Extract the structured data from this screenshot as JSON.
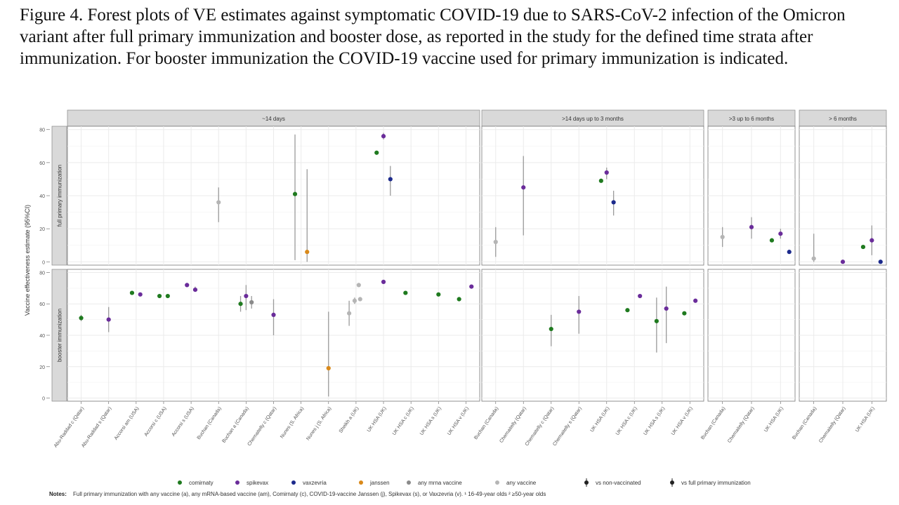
{
  "caption": "Figure 4. Forest plots of VE estimates against symptomatic COVID-19 due to SARS-CoV-2 infection of the Omicron variant after full primary immunization and booster dose, as reported in the study for the defined time strata after immunization. For booster immunization the COVID-19 vaccine used for primary immunization is indicated.",
  "colors": {
    "comirnaty": "#1f7a1f",
    "spikevax": "#6a2c9a",
    "vaxzevria": "#1c2a8c",
    "janssen": "#d9891a",
    "any_mrna": "#8a8a8a",
    "any_vaccine": "#b5b5b5",
    "error_bar": "#9a9a9a",
    "strip_bg": "#d9d9d9",
    "grid": "#ebebeb"
  },
  "notes": {
    "label": "Notes:",
    "text": "Full primary immunization with any vaccine (a), any mRNA-based vaccine (am), Comirnaty (c), COVID-19-vaccine Janssen (j), Spikevax (s), or Vaxzevria (v). ¹ 16-49-year olds ² ≥50-year olds"
  },
  "chart_data": {
    "type": "scatter",
    "subtype": "forest plot with error bars (faceted)",
    "ylabel": "Vaccine effectiveness estimate (95%CI)",
    "ylim": [
      -2,
      82
    ],
    "yticks": [
      0,
      20,
      40,
      60,
      80
    ],
    "grid": true,
    "legend_position": "bottom",
    "legend": [
      {
        "label": "comirnaty",
        "color_key": "comirnaty",
        "marker": "dot"
      },
      {
        "label": "spikevax",
        "color_key": "spikevax",
        "marker": "dot"
      },
      {
        "label": "vaxzevria",
        "color_key": "vaxzevria",
        "marker": "dot"
      },
      {
        "label": "janssen",
        "color_key": "janssen",
        "marker": "dot"
      },
      {
        "label": "any mrna vaccine",
        "color_key": "any_mrna",
        "marker": "dot"
      },
      {
        "label": "any vaccine",
        "color_key": "any_vaccine",
        "marker": "dot"
      },
      {
        "label": "vs non-vaccinated",
        "color_key": "none",
        "marker": "dot-bar"
      },
      {
        "label": "vs full primary immunization",
        "color_key": "none",
        "marker": "dot-bar"
      }
    ],
    "rows": [
      "full primary immunization",
      "booster immunization"
    ],
    "columns": [
      {
        "strip": "~14 days",
        "categories": [
          "Abu-Raddad c (Qatar)",
          "Abu-Raddad s (Qatar)",
          "Accorsi am (USA)",
          "Accorsi c (USA)",
          "Accorsi s (USA)",
          "Buchan (Canada)",
          "Buchan a (Canada)",
          "Chemaitelly c (Qatar)",
          "Nunes (S. Africa)",
          "Nunes j (S. Africa)",
          "Sheikh a (UK)",
          "UK HSA (UK)",
          "UK HSA c (UK)",
          "UK HSA s (UK)",
          "UK HSA v (UK)"
        ],
        "points": [
          {
            "row": 0,
            "x": "Buchan (Canada)",
            "offset": 0,
            "y": 36,
            "lo": 24,
            "hi": 45,
            "color_key": "any_vaccine"
          },
          {
            "row": 0,
            "x": "Nunes (S. Africa)",
            "offset": -0.22,
            "y": 41,
            "lo": 1,
            "hi": 77,
            "color_key": "comirnaty"
          },
          {
            "row": 0,
            "x": "Nunes (S. Africa)",
            "offset": 0.22,
            "y": 6,
            "lo": 0,
            "hi": 56,
            "color_key": "janssen"
          },
          {
            "row": 0,
            "x": "UK HSA (UK)",
            "offset": -0.25,
            "y": 66,
            "lo": 66,
            "hi": 66,
            "color_key": "comirnaty"
          },
          {
            "row": 0,
            "x": "UK HSA (UK)",
            "offset": 0,
            "y": 76,
            "lo": 74,
            "hi": 78,
            "color_key": "spikevax"
          },
          {
            "row": 0,
            "x": "UK HSA (UK)",
            "offset": 0.25,
            "y": 50,
            "lo": 40,
            "hi": 58,
            "color_key": "vaxzevria"
          },
          {
            "row": 1,
            "x": "Abu-Raddad c (Qatar)",
            "offset": 0,
            "y": 51,
            "lo": 49,
            "hi": 53,
            "color_key": "comirnaty"
          },
          {
            "row": 1,
            "x": "Abu-Raddad s (Qatar)",
            "offset": 0,
            "y": 50,
            "lo": 42,
            "hi": 58,
            "color_key": "spikevax"
          },
          {
            "row": 1,
            "x": "Accorsi am (USA)",
            "offset": -0.15,
            "y": 67,
            "lo": 66,
            "hi": 68,
            "color_key": "comirnaty"
          },
          {
            "row": 1,
            "x": "Accorsi am (USA)",
            "offset": 0.15,
            "y": 66,
            "lo": 65,
            "hi": 67,
            "color_key": "spikevax"
          },
          {
            "row": 1,
            "x": "Accorsi c (USA)",
            "offset": -0.15,
            "y": 65,
            "lo": 64,
            "hi": 66,
            "color_key": "comirnaty"
          },
          {
            "row": 1,
            "x": "Accorsi c (USA)",
            "offset": 0.15,
            "y": 65,
            "lo": 64,
            "hi": 66,
            "color_key": "comirnaty"
          },
          {
            "row": 1,
            "x": "Accorsi s (USA)",
            "offset": -0.15,
            "y": 72,
            "lo": 71,
            "hi": 73,
            "color_key": "spikevax"
          },
          {
            "row": 1,
            "x": "Accorsi s (USA)",
            "offset": 0.15,
            "y": 69,
            "lo": 68,
            "hi": 71,
            "color_key": "spikevax"
          },
          {
            "row": 1,
            "x": "Buchan a (Canada)",
            "offset": -0.2,
            "y": 60,
            "lo": 55,
            "hi": 65,
            "color_key": "comirnaty"
          },
          {
            "row": 1,
            "x": "Buchan a (Canada)",
            "offset": 0,
            "y": 65,
            "lo": 56,
            "hi": 72,
            "color_key": "spikevax"
          },
          {
            "row": 1,
            "x": "Buchan a (Canada)",
            "offset": 0.2,
            "y": 61,
            "lo": 57,
            "hi": 65,
            "color_key": "any_mrna"
          },
          {
            "row": 1,
            "x": "Chemaitelly c (Qatar)",
            "offset": 0,
            "y": 53,
            "lo": 40,
            "hi": 63,
            "color_key": "spikevax"
          },
          {
            "row": 1,
            "x": "Nunes j (S. Africa)",
            "offset": 0,
            "y": 19,
            "lo": 1,
            "hi": 55,
            "color_key": "janssen"
          },
          {
            "row": 1,
            "x": "Sheikh a (UK)",
            "offset": -0.25,
            "y": 54,
            "lo": 46,
            "hi": 62,
            "color_key": "any_vaccine"
          },
          {
            "row": 1,
            "x": "Sheikh a (UK)",
            "offset": -0.05,
            "y": 62,
            "lo": 60,
            "hi": 64,
            "color_key": "any_vaccine"
          },
          {
            "row": 1,
            "x": "Sheikh a (UK)",
            "offset": 0.15,
            "y": 63,
            "lo": 62,
            "hi": 64,
            "color_key": "any_vaccine"
          },
          {
            "row": 1,
            "x": "Sheikh a (UK)",
            "offset": 0.1,
            "y": 72,
            "lo": 71,
            "hi": 73,
            "color_key": "any_vaccine"
          },
          {
            "row": 1,
            "x": "UK HSA (UK)",
            "offset": 0,
            "y": 74,
            "lo": 73,
            "hi": 75,
            "color_key": "spikevax"
          },
          {
            "row": 1,
            "x": "UK HSA c (UK)",
            "offset": -0.2,
            "y": 67,
            "lo": 66,
            "hi": 68,
            "color_key": "comirnaty"
          },
          {
            "row": 1,
            "x": "UK HSA s (UK)",
            "offset": 0,
            "y": 66,
            "lo": 65,
            "hi": 67,
            "color_key": "comirnaty"
          },
          {
            "row": 1,
            "x": "UK HSA v (UK)",
            "offset": -0.25,
            "y": 63,
            "lo": 62,
            "hi": 64,
            "color_key": "comirnaty"
          },
          {
            "row": 1,
            "x": "UK HSA v (UK)",
            "offset": 0.2,
            "y": 71,
            "lo": 70,
            "hi": 72,
            "color_key": "spikevax"
          }
        ]
      },
      {
        "strip": ">14 days up to 3 months",
        "categories": [
          "Buchan (Canada)",
          "Chemaitelly (Qatar)",
          "Chemaitelly c (Qatar)",
          "Chemaitelly s (Qatar)",
          "UK HSA (UK)",
          "UK HSA c (UK)",
          "UK HSA s (UK)",
          "UK HSA v (UK)"
        ],
        "points": [
          {
            "row": 0,
            "x": "Buchan (Canada)",
            "offset": 0,
            "y": 12,
            "lo": 3,
            "hi": 21,
            "color_key": "any_vaccine"
          },
          {
            "row": 0,
            "x": "Chemaitelly (Qatar)",
            "offset": 0,
            "y": 45,
            "lo": 16,
            "hi": 64,
            "color_key": "spikevax"
          },
          {
            "row": 0,
            "x": "UK HSA (UK)",
            "offset": -0.2,
            "y": 49,
            "lo": 48,
            "hi": 50,
            "color_key": "comirnaty"
          },
          {
            "row": 0,
            "x": "UK HSA (UK)",
            "offset": 0,
            "y": 54,
            "lo": 50,
            "hi": 57,
            "color_key": "spikevax"
          },
          {
            "row": 0,
            "x": "UK HSA (UK)",
            "offset": 0.25,
            "y": 36,
            "lo": 28,
            "hi": 43,
            "color_key": "vaxzevria"
          },
          {
            "row": 1,
            "x": "Chemaitelly c (Qatar)",
            "offset": 0,
            "y": 44,
            "lo": 33,
            "hi": 53,
            "color_key": "comirnaty"
          },
          {
            "row": 1,
            "x": "Chemaitelly s (Qatar)",
            "offset": 0,
            "y": 55,
            "lo": 41,
            "hi": 65,
            "color_key": "spikevax"
          },
          {
            "row": 1,
            "x": "UK HSA c (UK)",
            "offset": -0.25,
            "y": 56,
            "lo": 55,
            "hi": 57,
            "color_key": "comirnaty"
          },
          {
            "row": 1,
            "x": "UK HSA c (UK)",
            "offset": 0.2,
            "y": 65,
            "lo": 64,
            "hi": 66,
            "color_key": "spikevax"
          },
          {
            "row": 1,
            "x": "UK HSA s (UK)",
            "offset": -0.2,
            "y": 49,
            "lo": 29,
            "hi": 64,
            "color_key": "comirnaty"
          },
          {
            "row": 1,
            "x": "UK HSA s (UK)",
            "offset": 0.15,
            "y": 57,
            "lo": 35,
            "hi": 71,
            "color_key": "spikevax"
          },
          {
            "row": 1,
            "x": "UK HSA v (UK)",
            "offset": -0.2,
            "y": 54,
            "lo": 53,
            "hi": 55,
            "color_key": "comirnaty"
          },
          {
            "row": 1,
            "x": "UK HSA v (UK)",
            "offset": 0.2,
            "y": 62,
            "lo": 61,
            "hi": 63,
            "color_key": "spikevax"
          }
        ]
      },
      {
        "strip": ">3 up to 6 months",
        "categories": [
          "Buchan (Canada)",
          "Chemaitelly (Qatar)",
          "UK HSA (UK)"
        ],
        "points": [
          {
            "row": 0,
            "x": "Buchan (Canada)",
            "offset": 0,
            "y": 15,
            "lo": 9,
            "hi": 21,
            "color_key": "any_vaccine"
          },
          {
            "row": 0,
            "x": "Chemaitelly (Qatar)",
            "offset": 0,
            "y": 21,
            "lo": 14,
            "hi": 27,
            "color_key": "spikevax"
          },
          {
            "row": 0,
            "x": "UK HSA (UK)",
            "offset": -0.3,
            "y": 13,
            "lo": 12,
            "hi": 14,
            "color_key": "comirnaty"
          },
          {
            "row": 0,
            "x": "UK HSA (UK)",
            "offset": 0,
            "y": 17,
            "lo": 14,
            "hi": 20,
            "color_key": "spikevax"
          },
          {
            "row": 0,
            "x": "UK HSA (UK)",
            "offset": 0.3,
            "y": 6,
            "lo": 5,
            "hi": 7,
            "color_key": "vaxzevria"
          }
        ]
      },
      {
        "strip": "> 6 months",
        "categories": [
          "Buchan (Canada)",
          "Chemaitelly (Qatar)",
          "UK HSA (UK)"
        ],
        "points": [
          {
            "row": 0,
            "x": "Buchan (Canada)",
            "offset": 0,
            "y": 2,
            "lo": 0,
            "hi": 17,
            "color_key": "any_vaccine"
          },
          {
            "row": 0,
            "x": "Chemaitelly (Qatar)",
            "offset": 0,
            "y": 0,
            "lo": 0,
            "hi": 1,
            "color_key": "spikevax"
          },
          {
            "row": 0,
            "x": "UK HSA (UK)",
            "offset": -0.3,
            "y": 9,
            "lo": 8,
            "hi": 10,
            "color_key": "comirnaty"
          },
          {
            "row": 0,
            "x": "UK HSA (UK)",
            "offset": 0,
            "y": 13,
            "lo": 4,
            "hi": 22,
            "color_key": "spikevax"
          },
          {
            "row": 0,
            "x": "UK HSA (UK)",
            "offset": 0.3,
            "y": 0,
            "lo": 0,
            "hi": 1,
            "color_key": "vaxzevria"
          }
        ]
      }
    ]
  }
}
